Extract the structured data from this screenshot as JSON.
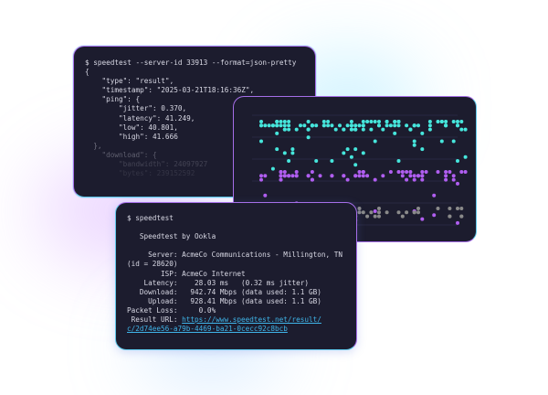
{
  "json_terminal": {
    "lines": [
      "$ speedtest --server-id 33913 --format=json-pretty",
      "{",
      "    \"type\": \"result\",",
      "    \"timestamp\": \"2025-03-21T18:16:36Z\",",
      "    \"ping\": {",
      "        \"jitter\": 0.370,",
      "        \"latency\": 41.249,",
      "        \"low\": 40.801,",
      "        \"high\": 41.666",
      "  },",
      "    \"download\": {",
      "        \"bandwidth\": 24097927",
      "        \"bytes\": 239152592"
    ]
  },
  "chart_window": {
    "colors": {
      "top": "#46e6dc",
      "middle": "#b05ef0",
      "bottom": "#8a8a8a",
      "grid": "#2c2c48"
    }
  },
  "cli_terminal": {
    "command": "$ speedtest",
    "title": "   Speedtest by Ookla",
    "lines": [
      "     Server: AcmeCo Communications - Millington, TN",
      "(id = 28620)",
      "        ISP: AcmeCo Internet",
      "    Latency:    28.03 ms   (0.32 ms jitter)",
      "   Download:   942.74 Mbps (data used: 1.1 GB)",
      "     Upload:   928.41 Mbps (data used: 1.1 GB)",
      "Packet Loss:     0.0%"
    ],
    "result_label": " Result URL: ",
    "result_url_1": "https://www.speedtest.net/result/",
    "result_url_2": "c/2d74ee56-a79b-4469-ba21-0cecc92c8bcb"
  }
}
